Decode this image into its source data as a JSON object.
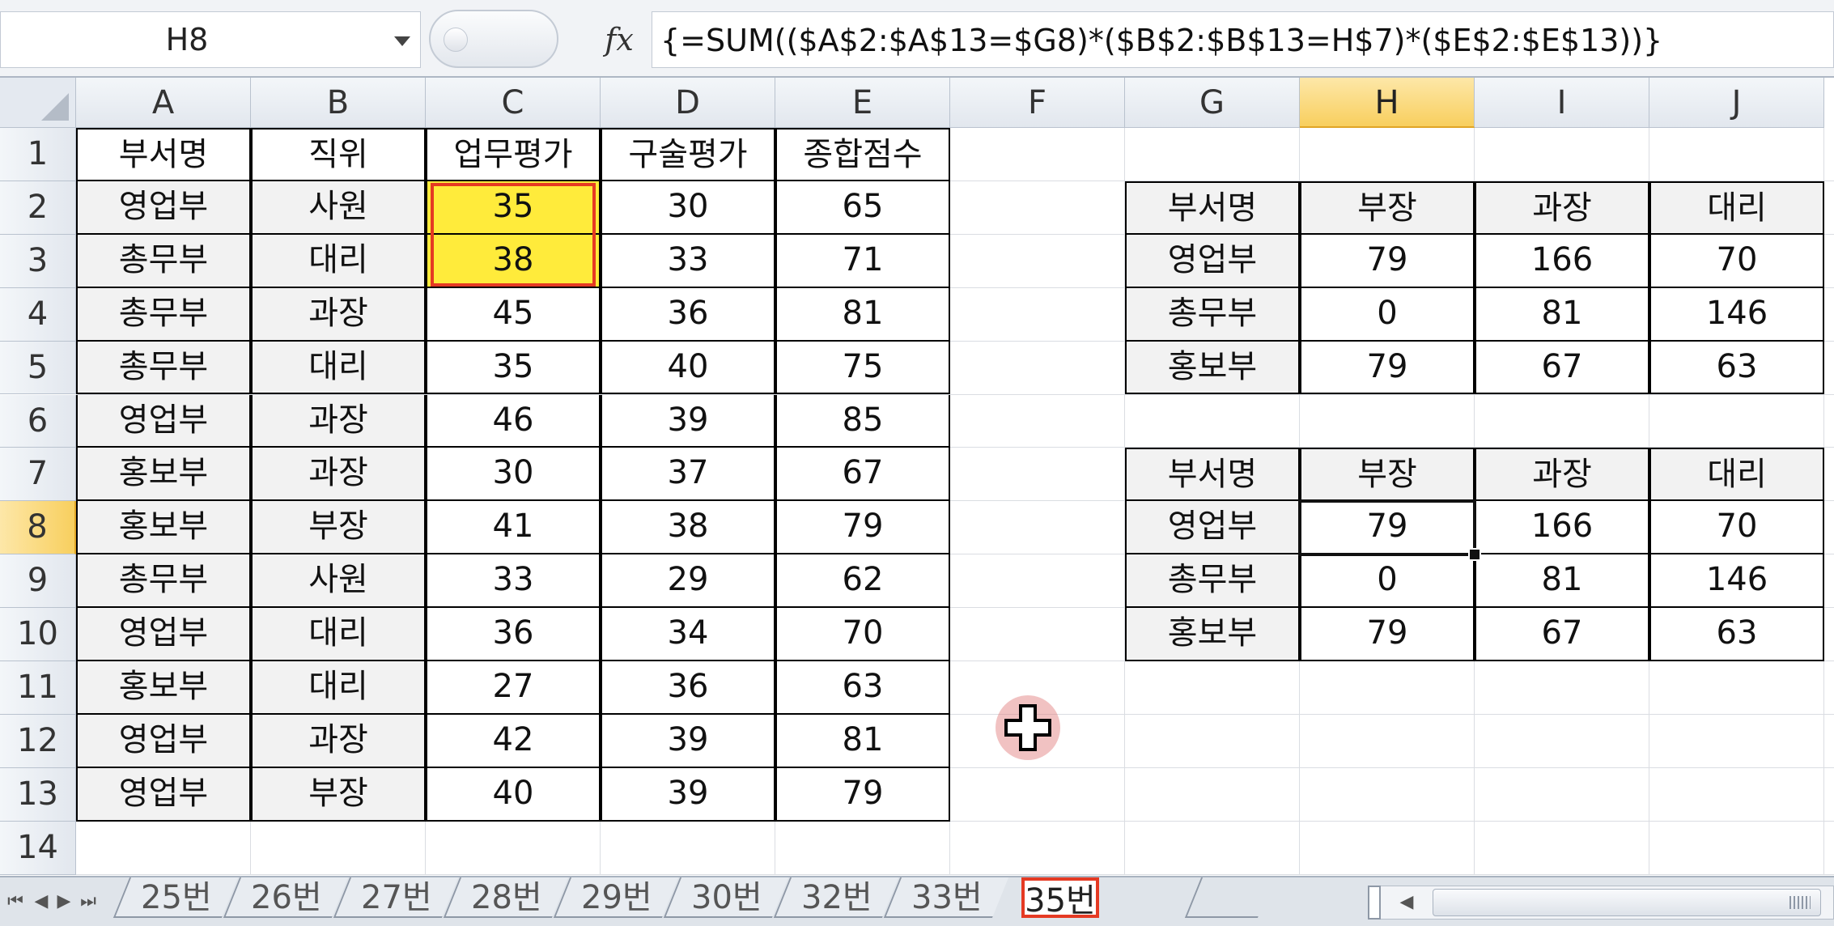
{
  "name_box": {
    "value": "H8"
  },
  "formula_bar": {
    "fx_label": "fx",
    "formula": "{=SUM(($A$2:$A$13=$G8)*($B$2:$B$13=H$7)*($E$2:$E$13))}"
  },
  "columns": [
    "A",
    "B",
    "C",
    "D",
    "E",
    "F",
    "G",
    "H",
    "I",
    "J"
  ],
  "active_column": "H",
  "rows": [
    "1",
    "2",
    "3",
    "4",
    "5",
    "6",
    "7",
    "8",
    "9",
    "10",
    "11",
    "12",
    "13",
    "14"
  ],
  "active_row": "8",
  "data_table": {
    "headers": [
      "부서명",
      "직위",
      "업무평가",
      "구술평가",
      "종합점수"
    ],
    "rows": [
      [
        "영업부",
        "사원",
        "35",
        "30",
        "65"
      ],
      [
        "총무부",
        "대리",
        "38",
        "33",
        "71"
      ],
      [
        "총무부",
        "과장",
        "45",
        "36",
        "81"
      ],
      [
        "총무부",
        "대리",
        "35",
        "40",
        "75"
      ],
      [
        "영업부",
        "과장",
        "46",
        "39",
        "85"
      ],
      [
        "홍보부",
        "과장",
        "30",
        "37",
        "67"
      ],
      [
        "홍보부",
        "부장",
        "41",
        "38",
        "79"
      ],
      [
        "총무부",
        "사원",
        "33",
        "29",
        "62"
      ],
      [
        "영업부",
        "대리",
        "36",
        "34",
        "70"
      ],
      [
        "홍보부",
        "대리",
        "27",
        "36",
        "63"
      ],
      [
        "영업부",
        "과장",
        "42",
        "39",
        "81"
      ],
      [
        "영업부",
        "부장",
        "40",
        "39",
        "79"
      ]
    ]
  },
  "summary_top": {
    "headers": [
      "부서명",
      "부장",
      "과장",
      "대리"
    ],
    "rows": [
      [
        "영업부",
        "79",
        "166",
        "70"
      ],
      [
        "총무부",
        "0",
        "81",
        "146"
      ],
      [
        "홍보부",
        "79",
        "67",
        "63"
      ]
    ]
  },
  "summary_bottom": {
    "headers": [
      "부서명",
      "부장",
      "과장",
      "대리"
    ],
    "rows": [
      [
        "영업부",
        "79",
        "166",
        "70"
      ],
      [
        "총무부",
        "0",
        "81",
        "146"
      ],
      [
        "홍보부",
        "79",
        "67",
        "63"
      ]
    ]
  },
  "sheet_tabs": [
    "25번",
    "26번",
    "27번",
    "28번",
    "29번",
    "30번",
    "32번",
    "33번",
    "35번"
  ],
  "active_tab": "35번",
  "colors": {
    "highlight_yellow": "#ffeb3b",
    "highlight_red": "#e53a23",
    "active_header": "#f8cf5e"
  }
}
